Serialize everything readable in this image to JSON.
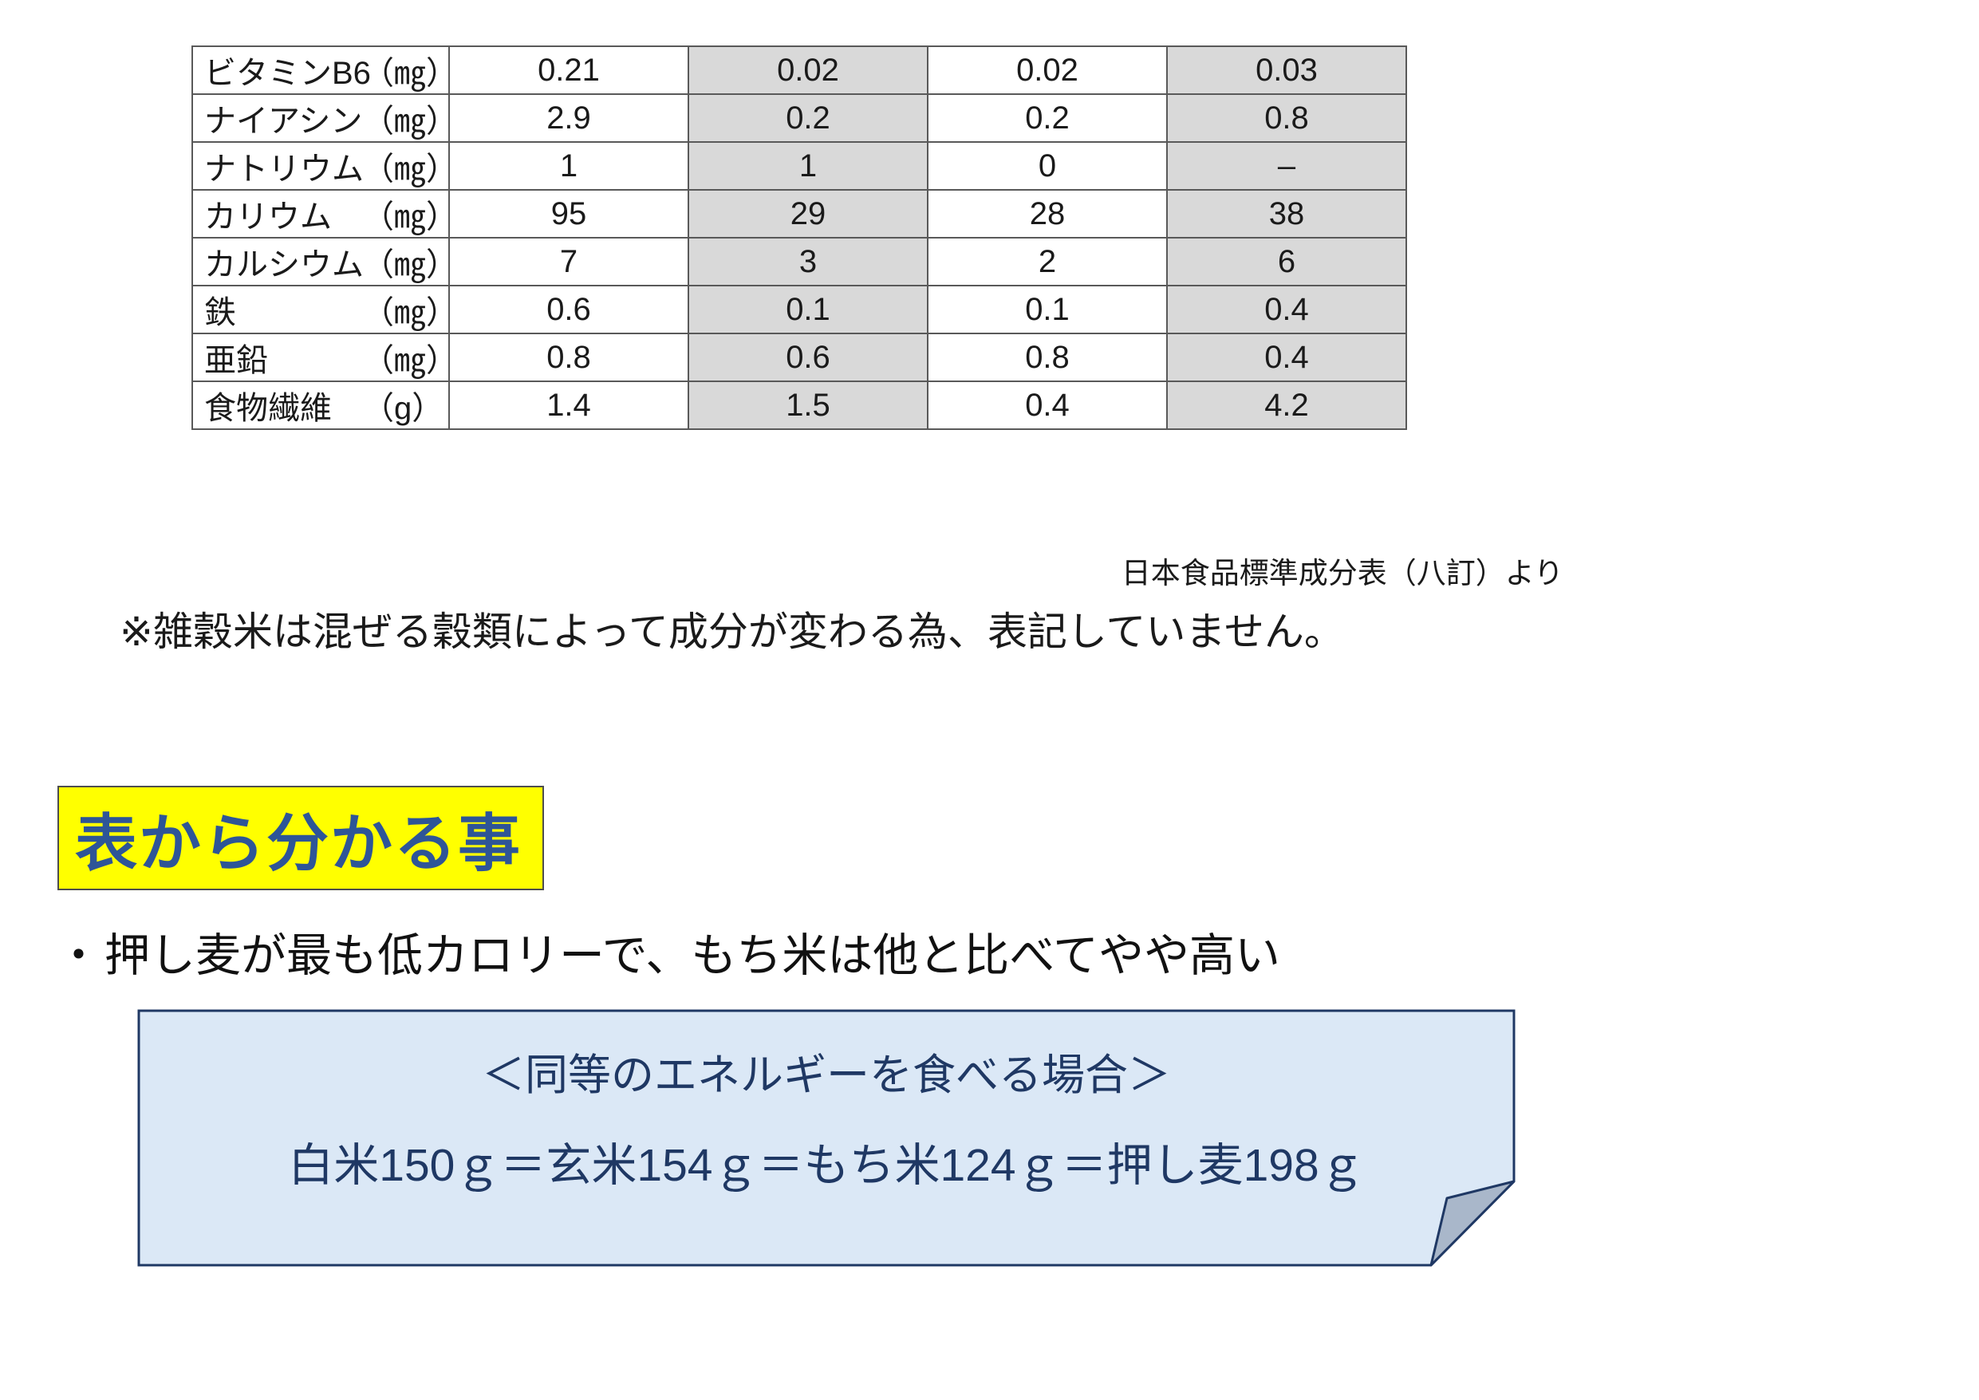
{
  "table": {
    "rows": [
      {
        "label": "ビタミンB6",
        "unit": "（㎎）",
        "values": [
          "0.21",
          "0.02",
          "0.02",
          "0.03"
        ]
      },
      {
        "label": "ナイアシン",
        "unit": "（㎎）",
        "values": [
          "2.9",
          "0.2",
          "0.2",
          "0.8"
        ]
      },
      {
        "label": "ナトリウム",
        "unit": "（㎎）",
        "values": [
          "1",
          "1",
          "0",
          "–"
        ]
      },
      {
        "label": "カリウム",
        "unit": "（㎎）",
        "values": [
          "95",
          "29",
          "28",
          "38"
        ]
      },
      {
        "label": "カルシウム",
        "unit": "（㎎）",
        "values": [
          "7",
          "3",
          "2",
          "6"
        ]
      },
      {
        "label": "鉄",
        "unit": "（㎎）",
        "values": [
          "0.6",
          "0.1",
          "0.1",
          "0.4"
        ]
      },
      {
        "label": "亜鉛",
        "unit": "（㎎）",
        "values": [
          "0.8",
          "0.6",
          "0.8",
          "0.4"
        ]
      },
      {
        "label": "食物繊維",
        "unit": "（g）",
        "values": [
          "1.4",
          "1.5",
          "0.4",
          "4.2"
        ]
      }
    ],
    "shaded_value_columns": [
      1,
      3
    ],
    "shade_color": "#d9d9d9"
  },
  "source_note": "日本食品標準成分表（八訂）より",
  "footnote": "※雑穀米は混ぜる穀類によって成分が変わる為、表記していません。",
  "heading": {
    "text": "表から分かる事",
    "highlight_color": "#ffff00",
    "text_color": "#2e5597"
  },
  "bullet": {
    "marker": "・",
    "text": "押し麦が最も低カロリーで、もち米は他と比べてやや高い"
  },
  "callout": {
    "title": "＜同等のエネルギーを食べる場合＞",
    "body": "白米150ｇ＝玄米154ｇ＝もち米124ｇ＝押し麦198ｇ",
    "fill_color": "#dbe8f6",
    "border_color": "#1f3864",
    "fold_color": "#a9b7ca"
  }
}
